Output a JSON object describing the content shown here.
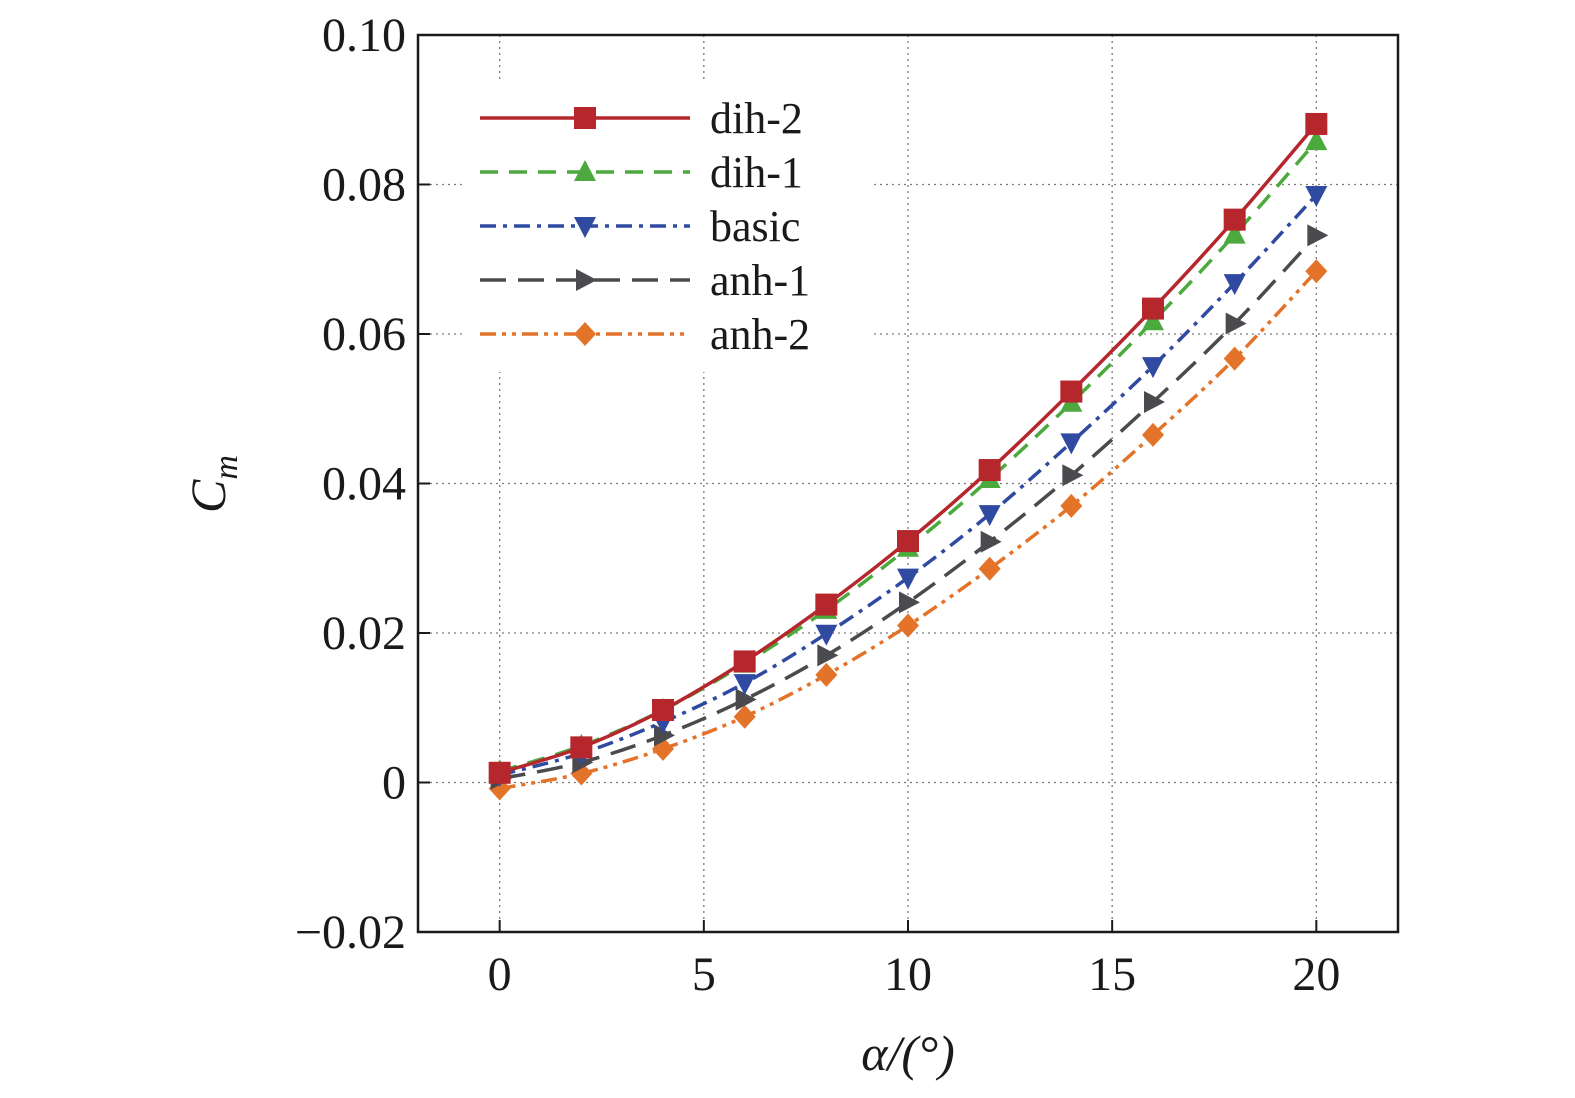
{
  "chart_data": {
    "type": "line",
    "xlabel": "α/(°)",
    "ylabel": "C",
    "ylabel_sub": "m",
    "xlim": [
      -2,
      22
    ],
    "ylim": [
      -0.02,
      0.1
    ],
    "xticks": [
      0,
      5,
      10,
      15,
      20
    ],
    "xtick_labels": [
      "0",
      "5",
      "10",
      "15",
      "20"
    ],
    "yticks": [
      -0.02,
      0,
      0.02,
      0.04,
      0.06,
      0.08,
      0.1
    ],
    "ytick_labels": [
      "−0.02",
      "0",
      "0.02",
      "0.04",
      "0.06",
      "0.08",
      "0.10"
    ],
    "grid": true,
    "legend_position": "top-left",
    "x": [
      0,
      2,
      4,
      6,
      8,
      10,
      12,
      14,
      16,
      18,
      20
    ],
    "series": [
      {
        "name": "dih-2",
        "color": "#b5272d",
        "dash": "solid",
        "marker": "square",
        "values": [
          0.0013,
          0.0047,
          0.0097,
          0.0162,
          0.0238,
          0.0323,
          0.0418,
          0.0523,
          0.0634,
          0.0753,
          0.0881
        ]
      },
      {
        "name": "dih-1",
        "color": "#4ca93e",
        "dash": "dash",
        "marker": "triangle-up",
        "values": [
          0.0015,
          0.0049,
          0.0097,
          0.0159,
          0.0231,
          0.0314,
          0.0406,
          0.0508,
          0.0617,
          0.0733,
          0.0858
        ]
      },
      {
        "name": "basic",
        "color": "#2f4aa0",
        "dash": "dashdot",
        "marker": "triangle-down",
        "values": [
          0.001,
          0.0039,
          0.0081,
          0.0133,
          0.0199,
          0.0274,
          0.0359,
          0.0455,
          0.0557,
          0.0668,
          0.0786
        ]
      },
      {
        "name": "anh-1",
        "color": "#4b4b4f",
        "dash": "longdash",
        "marker": "triangle-right",
        "values": [
          0.0005,
          0.0027,
          0.0063,
          0.0111,
          0.017,
          0.0241,
          0.0322,
          0.0411,
          0.0509,
          0.0614,
          0.0732
        ]
      },
      {
        "name": "anh-2",
        "color": "#e4732a",
        "dash": "dashdotdot",
        "marker": "diamond",
        "values": [
          -0.0008,
          0.0012,
          0.0045,
          0.0088,
          0.0144,
          0.021,
          0.0286,
          0.037,
          0.0465,
          0.0567,
          0.0684
        ]
      }
    ]
  }
}
